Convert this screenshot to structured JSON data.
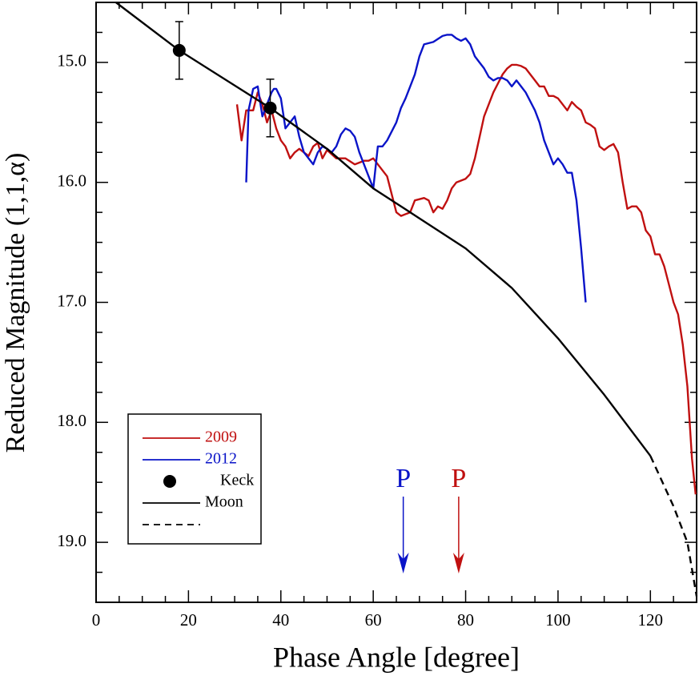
{
  "chart_data": {
    "type": "line",
    "x_label": "Phase Angle [degree]",
    "y_label": "Reduced Magnitude (1,1,α)",
    "xlim": [
      0,
      130
    ],
    "ylim": [
      14.5,
      19.5
    ],
    "y_inverted": true,
    "xticks": [
      0,
      20,
      40,
      60,
      80,
      100,
      120
    ],
    "yticks": [
      {
        "value": 15,
        "label": "15.0"
      },
      {
        "value": 16,
        "label": "16.0"
      },
      {
        "value": 17,
        "label": "17.0"
      },
      {
        "value": 18,
        "label": "18.0"
      },
      {
        "value": 19,
        "label": "19.0"
      }
    ],
    "x_minor_ticks": [
      5,
      10,
      15,
      25,
      30,
      35,
      45,
      50,
      55,
      65,
      70,
      75,
      85,
      90,
      95,
      105,
      110,
      115,
      125
    ],
    "y_minor_ticks": [
      14.75,
      15.25,
      15.5,
      15.75,
      16.25,
      16.5,
      16.75,
      17.25,
      17.5,
      17.75,
      18.25,
      18.5,
      18.75,
      19.25
    ],
    "legend": "lower left",
    "series": [
      {
        "name": "2009",
        "color": "#c01010",
        "style": "solid",
        "x": [
          30.5,
          31.5,
          32.5,
          34,
          35,
          36,
          37,
          38,
          39,
          40,
          41,
          42,
          43,
          44,
          45,
          46,
          47,
          48,
          49,
          50,
          52,
          54,
          56,
          58,
          59,
          60,
          61,
          63,
          65,
          66,
          68,
          69,
          71,
          72,
          73,
          74,
          75,
          76,
          77,
          78,
          80,
          81,
          82,
          84,
          85,
          86,
          88,
          89,
          90,
          91,
          92,
          93,
          94,
          95,
          96,
          97,
          98,
          99,
          100,
          101,
          102,
          103,
          104,
          105,
          106,
          107,
          108,
          109,
          110,
          111,
          112,
          113,
          114,
          115,
          116,
          117,
          118,
          119,
          120,
          121,
          122,
          123,
          124,
          125,
          126,
          127,
          128,
          129,
          129.8
        ],
        "values": [
          15.35,
          15.65,
          15.4,
          15.4,
          15.25,
          15.35,
          15.5,
          15.4,
          15.55,
          15.65,
          15.7,
          15.8,
          15.75,
          15.72,
          15.75,
          15.78,
          15.7,
          15.67,
          15.8,
          15.73,
          15.8,
          15.8,
          15.85,
          15.82,
          15.82,
          15.8,
          15.85,
          15.95,
          16.25,
          16.28,
          16.25,
          16.15,
          16.13,
          16.15,
          16.25,
          16.2,
          16.22,
          16.15,
          16.05,
          16.0,
          15.97,
          15.93,
          15.8,
          15.45,
          15.35,
          15.25,
          15.1,
          15.05,
          15.02,
          15.02,
          15.03,
          15.05,
          15.1,
          15.15,
          15.2,
          15.2,
          15.28,
          15.28,
          15.3,
          15.35,
          15.4,
          15.33,
          15.37,
          15.4,
          15.5,
          15.52,
          15.55,
          15.7,
          15.73,
          15.7,
          15.68,
          15.75,
          16.0,
          16.22,
          16.2,
          16.2,
          16.25,
          16.4,
          16.45,
          16.6,
          16.6,
          16.7,
          16.85,
          17.0,
          17.1,
          17.35,
          17.7,
          18.3,
          18.6
        ]
      },
      {
        "name": "2012",
        "color": "#0a14c8",
        "style": "solid",
        "x": [
          32.5,
          33,
          34,
          35,
          36,
          37,
          38,
          38.5,
          39,
          40,
          41,
          42,
          43,
          44,
          45,
          46,
          47,
          48,
          49,
          50,
          51,
          52,
          53,
          54,
          55,
          56,
          57,
          58,
          59,
          60,
          61,
          62,
          63,
          65,
          66,
          67,
          68,
          69,
          70,
          71,
          73,
          75,
          76,
          77,
          78,
          79,
          80,
          81,
          82,
          83,
          84,
          85,
          86,
          87,
          88,
          89,
          90,
          91,
          92,
          93,
          95,
          96,
          97,
          98,
          99,
          100,
          101,
          102,
          103,
          104,
          105,
          106
        ],
        "values": [
          16.0,
          15.4,
          15.22,
          15.2,
          15.45,
          15.35,
          15.25,
          15.22,
          15.22,
          15.3,
          15.55,
          15.5,
          15.45,
          15.62,
          15.75,
          15.8,
          15.85,
          15.75,
          15.7,
          15.72,
          15.75,
          15.7,
          15.6,
          15.55,
          15.57,
          15.62,
          15.75,
          15.85,
          15.95,
          16.05,
          15.7,
          15.7,
          15.65,
          15.5,
          15.38,
          15.3,
          15.2,
          15.1,
          14.95,
          14.85,
          14.83,
          14.78,
          14.77,
          14.77,
          14.8,
          14.82,
          14.8,
          14.85,
          14.95,
          15.0,
          15.05,
          15.12,
          15.15,
          15.13,
          15.13,
          15.15,
          15.2,
          15.15,
          15.2,
          15.25,
          15.4,
          15.5,
          15.65,
          15.75,
          15.85,
          15.8,
          15.85,
          15.92,
          15.92,
          16.15,
          16.55,
          17.0
        ]
      },
      {
        "name": "Keck",
        "color": "#000000",
        "style": "points",
        "x": [
          18,
          37.7
        ],
        "values": [
          14.9,
          15.38
        ],
        "errors": [
          0.24,
          0.24
        ]
      },
      {
        "name": "Moon",
        "color": "#000000",
        "style": "solid",
        "x": [
          4.3,
          18,
          37.7,
          50,
          60,
          70,
          80,
          90,
          100,
          110,
          120
        ],
        "values": [
          14.5,
          14.9,
          15.38,
          15.72,
          16.05,
          16.3,
          16.55,
          16.88,
          17.3,
          17.77,
          18.28
        ]
      },
      {
        "color": "#000000",
        "style": "dashed",
        "x": [
          120,
          125,
          128,
          130
        ],
        "values": [
          18.28,
          18.7,
          19.0,
          19.45
        ]
      }
    ],
    "annotations": [
      {
        "text": "P",
        "x": 66.5,
        "color": "#0a14c8"
      },
      {
        "text": "P",
        "x": 78.5,
        "color": "#c01010"
      }
    ]
  }
}
